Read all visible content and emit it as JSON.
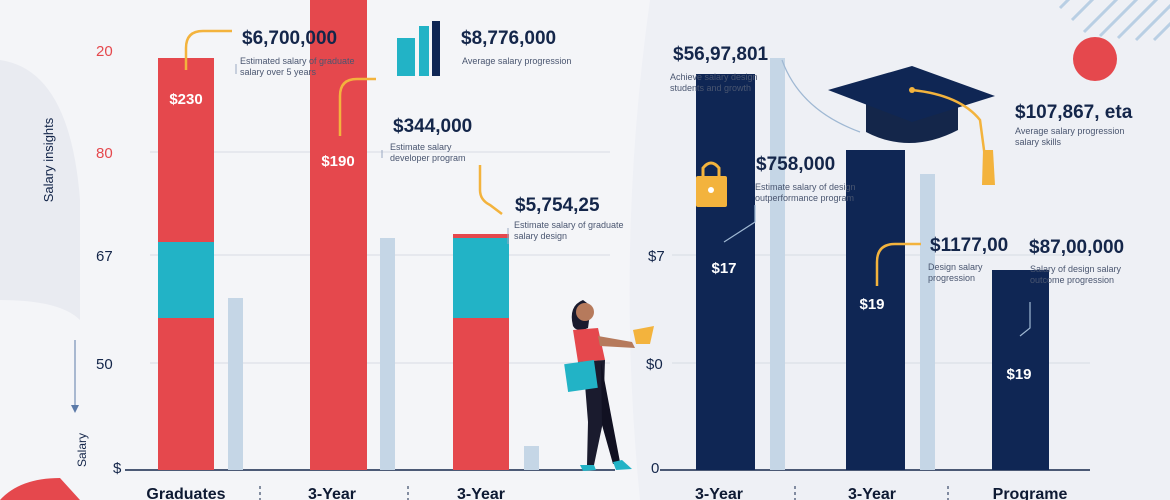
{
  "colors": {
    "background": "#f4f5f8",
    "panel_right": "#eef0f5",
    "red": "#e5484d",
    "teal": "#22b3c6",
    "navy": "#0f2654",
    "light_blue": "#c5d6e6",
    "gold": "#f3b33d",
    "text_dark": "#14264a"
  },
  "left_chart": {
    "y_title": "Salary insights",
    "y_title_bottom": "Salary",
    "y_ticks": [
      "20",
      "80",
      "67",
      "50",
      "$"
    ],
    "categories": [
      "Graduates",
      "3-Year",
      "3-Year"
    ],
    "bar_labels": [
      "$230",
      "$190",
      ""
    ],
    "callouts": [
      {
        "amount": "$6,700,000",
        "note": "Estimated salary of graduate salary over 5 years"
      },
      {
        "amount": "$8,776,000",
        "note": "Average salary progression"
      },
      {
        "amount": "$344,000",
        "note": "Estimate salary developer program"
      },
      {
        "amount": "$5,754,25",
        "note": "Estimate salary of graduate salary design"
      }
    ]
  },
  "right_chart": {
    "y_ticks": [
      "$7",
      "$0",
      "0"
    ],
    "categories": [
      "3-Year",
      "3-Year",
      "Programe"
    ],
    "bar_labels": [
      "$17",
      "$19",
      "$19"
    ],
    "callouts": [
      {
        "amount": "$56,97,801",
        "note": "Achieve salary design students and growth"
      },
      {
        "amount": "$107,867, eta",
        "note": "Average salary progression salary skills"
      },
      {
        "amount": "$758,000",
        "note": "Estimate salary of design outperformance program"
      },
      {
        "amount": "$1177,00",
        "note": "Design salary progression"
      },
      {
        "amount": "$87,00,000",
        "note": "Salary of design salary outcome progression"
      }
    ]
  },
  "chart_data": [
    {
      "type": "bar",
      "categories": [
        "Graduates",
        "3-Year",
        "3-Year"
      ],
      "ylim": [
        0,
        100
      ],
      "series": [
        {
          "values": [
            38,
            38,
            38
          ]
        },
        {
          "values": [
            19,
            0,
            20
          ]
        },
        {
          "values": [
            46,
            82,
            1
          ]
        },
        {
          "values": [
            43,
            58,
            6
          ]
        }
      ],
      "bar_labels": [
        "$230",
        "$190",
        ""
      ],
      "ylabel": "Salary insights"
    },
    {
      "type": "bar",
      "categories": [
        "3-Year",
        "3-Year",
        "Programe"
      ],
      "ylim": [
        0,
        100
      ],
      "series": [
        {
          "values": [
            99,
            80,
            50
          ]
        },
        {
          "values": [
            103,
            74,
            0
          ]
        }
      ],
      "bar_labels": [
        "$17",
        "$19",
        "$19"
      ]
    }
  ]
}
